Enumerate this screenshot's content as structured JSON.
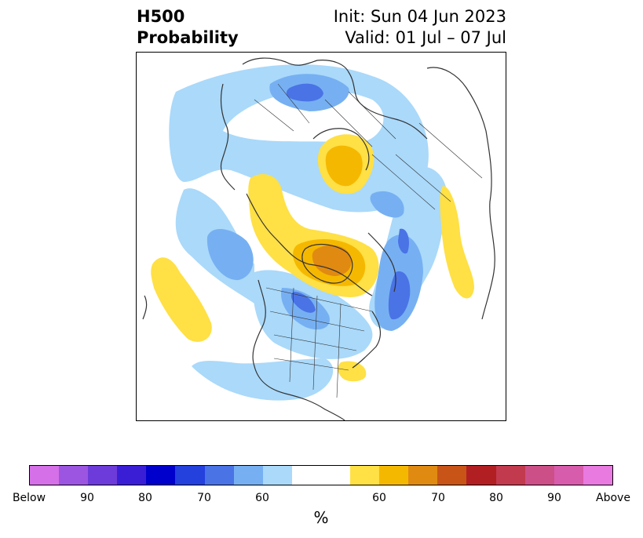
{
  "title": {
    "left_line1": "H500",
    "left_line2": "Probability",
    "right_line1": "Init: Sun 04 Jun 2023",
    "right_line2": "Valid: 01 Jul – 07 Jul"
  },
  "colorbar": {
    "segments": [
      "#d670e8",
      "#9c55e0",
      "#6d3bd9",
      "#3a1ed6",
      "#0000cc",
      "#2440dd",
      "#4a73e6",
      "#76b0f2",
      "#aad9fa",
      "#ffffff",
      "#ffe045",
      "#f5b800",
      "#e08a12",
      "#c85418",
      "#b21f23",
      "#c23a4e",
      "#cc4f88",
      "#d85cac",
      "#e87ae0"
    ],
    "labels": [
      "Below",
      "90",
      "80",
      "70",
      "60",
      "60",
      "70",
      "80",
      "90",
      "Above"
    ],
    "units": "%"
  },
  "palette": {
    "light_blue": "#aad9fa",
    "mid_blue": "#76b0f2",
    "blue": "#4a73e6",
    "yellow": "#ffe045",
    "gold": "#f5b800",
    "orange": "#e08a12",
    "coast": "#333333"
  }
}
